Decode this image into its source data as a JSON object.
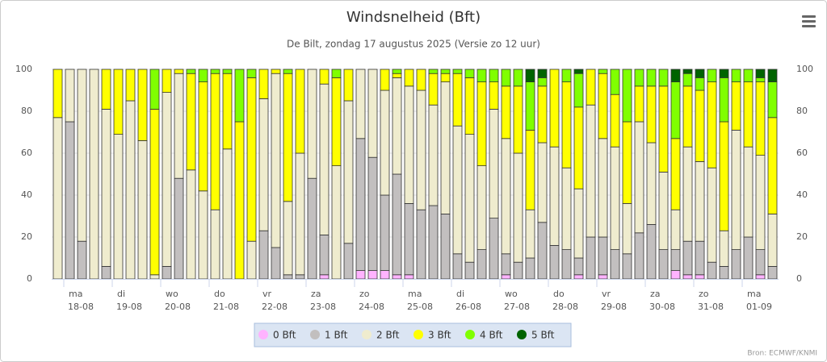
{
  "chart_data": {
    "type": "stacked_bar",
    "title": "Windsnelheid (Bft)",
    "subtitle": "De Bilt, zondag 17 augustus 2025 (Versie zo 12 uur)",
    "credits": "Bron: ECMWF/KNMI",
    "day_labels": [
      {
        "day": "ma",
        "date": "18-08"
      },
      {
        "day": "di",
        "date": "19-08"
      },
      {
        "day": "wo",
        "date": "20-08"
      },
      {
        "day": "do",
        "date": "21-08"
      },
      {
        "day": "vr",
        "date": "22-08"
      },
      {
        "day": "za",
        "date": "23-08"
      },
      {
        "day": "zo",
        "date": "24-08"
      },
      {
        "day": "ma",
        "date": "25-08"
      },
      {
        "day": "di",
        "date": "26-08"
      },
      {
        "day": "wo",
        "date": "27-08"
      },
      {
        "day": "do",
        "date": "28-08"
      },
      {
        "day": "vr",
        "date": "29-08"
      },
      {
        "day": "za",
        "date": "30-08"
      },
      {
        "day": "zo",
        "date": "31-08"
      },
      {
        "day": "ma",
        "date": "01-09"
      }
    ],
    "ylim": [
      0,
      100
    ],
    "yticks": [
      0,
      20,
      40,
      60,
      80,
      100
    ],
    "grid": true,
    "series": [
      {
        "name": "0 Bft",
        "color": "#ffb3ff",
        "values": [
          0,
          0,
          0,
          0,
          0,
          0,
          0,
          0,
          0,
          0,
          0,
          0,
          0,
          0,
          0,
          0,
          0,
          0,
          0,
          0,
          0,
          0,
          2,
          0,
          0,
          4,
          4,
          4,
          2,
          2,
          0,
          0,
          0,
          0,
          0,
          0,
          0,
          2,
          0,
          0,
          0,
          0,
          0,
          2,
          0,
          2,
          0,
          0,
          0,
          0,
          0,
          4,
          2,
          2,
          0,
          0,
          0,
          0,
          2,
          0
        ]
      },
      {
        "name": "1 Bft",
        "color": "#c2bfbf",
        "values": [
          0,
          75,
          18,
          0,
          6,
          0,
          0,
          0,
          0,
          6,
          48,
          0,
          0,
          0,
          0,
          0,
          0,
          23,
          15,
          2,
          2,
          48,
          19,
          0,
          17,
          63,
          54,
          36,
          48,
          34,
          33,
          35,
          31,
          12,
          8,
          14,
          29,
          10,
          8,
          10,
          27,
          16,
          14,
          8,
          20,
          18,
          14,
          12,
          22,
          26,
          14,
          10,
          16,
          16,
          8,
          6,
          14,
          20,
          12,
          6
        ]
      },
      {
        "name": "2 Bft",
        "color": "#efecce",
        "values": [
          77,
          25,
          82,
          100,
          75,
          69,
          85,
          66,
          2,
          83,
          50,
          52,
          42,
          33,
          62,
          0,
          18,
          63,
          83,
          35,
          58,
          52,
          72,
          54,
          68,
          33,
          42,
          50,
          46,
          56,
          57,
          48,
          63,
          61,
          61,
          40,
          52,
          55,
          52,
          23,
          38,
          47,
          39,
          33,
          63,
          47,
          49,
          24,
          53,
          39,
          37,
          19,
          45,
          38,
          45,
          17,
          57,
          43,
          45,
          25
        ]
      },
      {
        "name": "3 Bft",
        "color": "#ffff00",
        "values": [
          23,
          0,
          0,
          0,
          19,
          31,
          15,
          34,
          79,
          11,
          2,
          46,
          52,
          65,
          36,
          75,
          78,
          14,
          2,
          61,
          40,
          0,
          7,
          42,
          15,
          0,
          0,
          10,
          2,
          8,
          10,
          15,
          4,
          25,
          27,
          40,
          13,
          25,
          32,
          38,
          27,
          37,
          41,
          39,
          17,
          31,
          25,
          39,
          17,
          27,
          41,
          34,
          29,
          34,
          41,
          52,
          23,
          31,
          35,
          46
        ]
      },
      {
        "name": "4 Bft",
        "color": "#80ff00",
        "values": [
          0,
          0,
          0,
          0,
          0,
          0,
          0,
          0,
          19,
          0,
          0,
          2,
          6,
          2,
          2,
          25,
          4,
          0,
          0,
          2,
          0,
          0,
          0,
          4,
          0,
          0,
          0,
          0,
          2,
          0,
          0,
          2,
          2,
          2,
          4,
          6,
          6,
          8,
          8,
          23,
          4,
          0,
          6,
          16,
          0,
          2,
          12,
          25,
          8,
          8,
          8,
          27,
          6,
          6,
          6,
          21,
          6,
          6,
          2,
          17
        ]
      },
      {
        "name": "5 Bft",
        "color": "#006400",
        "values": [
          0,
          0,
          0,
          0,
          0,
          0,
          0,
          0,
          0,
          0,
          0,
          0,
          0,
          0,
          0,
          0,
          0,
          0,
          0,
          0,
          0,
          0,
          0,
          0,
          0,
          0,
          0,
          0,
          0,
          0,
          0,
          0,
          0,
          0,
          0,
          0,
          0,
          0,
          0,
          6,
          4,
          0,
          0,
          2,
          0,
          0,
          0,
          0,
          0,
          0,
          0,
          6,
          2,
          4,
          0,
          4,
          0,
          0,
          4,
          6
        ]
      }
    ]
  }
}
